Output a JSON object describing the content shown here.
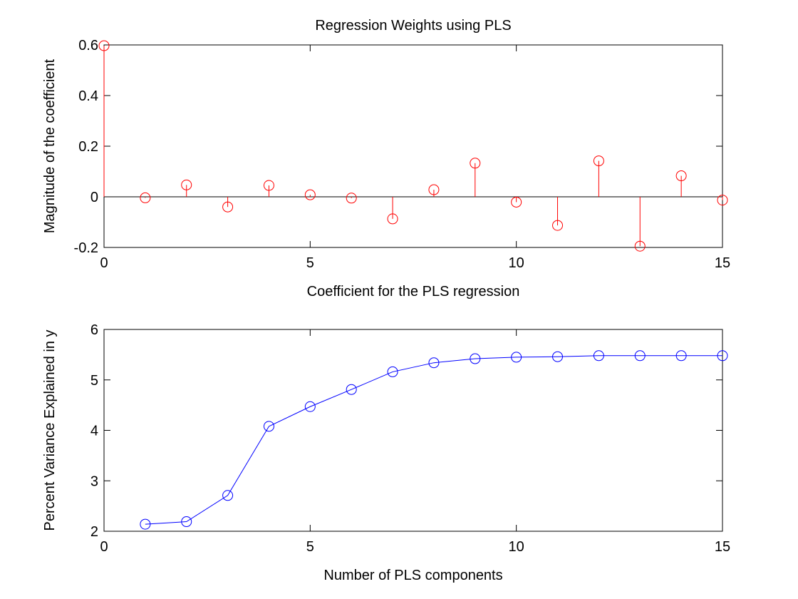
{
  "chart_data": [
    {
      "type": "stem",
      "title": "Regression Weights using PLS",
      "xlabel": "Coefficient for the PLS regression",
      "ylabel": "Magnitude of the coefficient",
      "xlim": [
        0,
        15
      ],
      "ylim": [
        -0.2,
        0.6
      ],
      "xticks": [
        0,
        5,
        10,
        15
      ],
      "xtick_labels": [
        "0",
        "5",
        "10",
        "15"
      ],
      "yticks": [
        -0.2,
        0,
        0.2,
        0.4,
        0.6
      ],
      "ytick_labels": [
        "-0.2",
        "0",
        "0.2",
        "0.4",
        "0.6"
      ],
      "grid": false,
      "baseline": 0,
      "color": "#ff0000",
      "marker": "circle-open",
      "x": [
        0,
        1,
        2,
        3,
        4,
        5,
        6,
        7,
        8,
        9,
        10,
        11,
        12,
        13,
        14,
        15
      ],
      "y": [
        0.597,
        -0.004,
        0.047,
        -0.04,
        0.045,
        0.008,
        -0.005,
        -0.087,
        0.028,
        0.133,
        -0.021,
        -0.113,
        0.142,
        -0.195,
        0.083,
        -0.013
      ]
    },
    {
      "type": "line",
      "title": "",
      "xlabel": "Number of PLS components",
      "ylabel": "Percent Variance Explained in y",
      "xlim": [
        0,
        15
      ],
      "ylim": [
        2,
        6
      ],
      "xticks": [
        0,
        5,
        10,
        15
      ],
      "xtick_labels": [
        "0",
        "5",
        "10",
        "15"
      ],
      "yticks": [
        2,
        3,
        4,
        5,
        6
      ],
      "ytick_labels": [
        "2",
        "3",
        "4",
        "5",
        "6"
      ],
      "grid": false,
      "color": "#0000ff",
      "marker": "circle-open",
      "x": [
        1,
        2,
        3,
        4,
        5,
        6,
        7,
        8,
        9,
        10,
        11,
        12,
        13,
        14,
        15
      ],
      "y": [
        2.14,
        2.19,
        2.71,
        4.08,
        4.47,
        4.81,
        5.16,
        5.34,
        5.42,
        5.45,
        5.46,
        5.48,
        5.48,
        5.48,
        5.48
      ]
    }
  ]
}
